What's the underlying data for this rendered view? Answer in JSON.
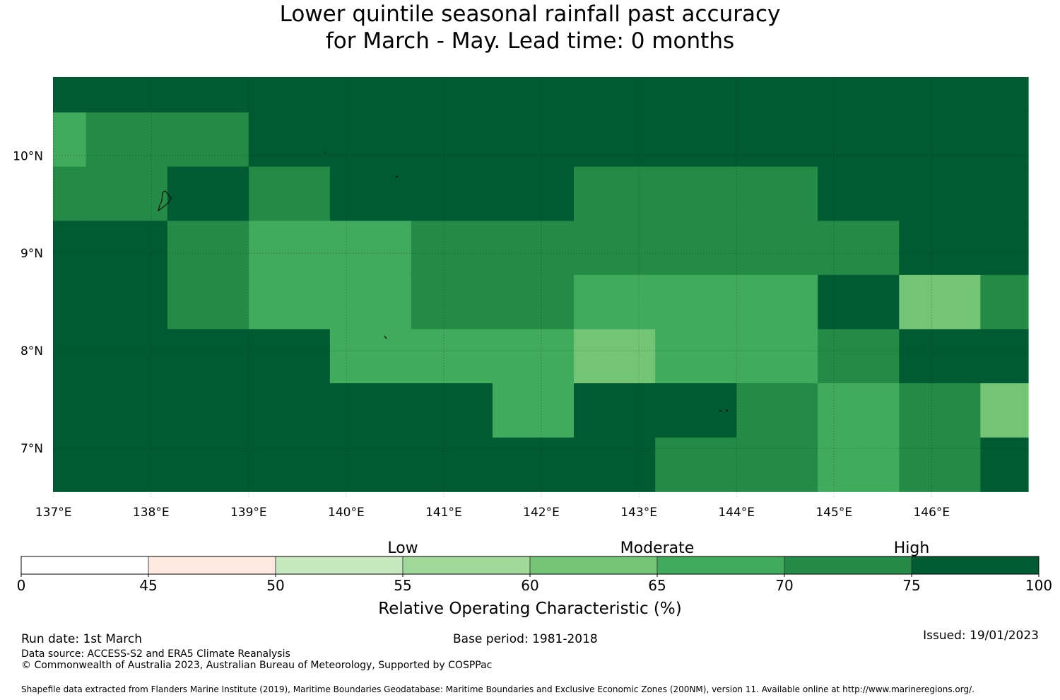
{
  "title": {
    "line1": "Lower quintile seasonal rainfall past accuracy",
    "line2": "for March - May. Lead time: 0 months"
  },
  "map": {
    "lon_ticks": [
      "137°E",
      "138°E",
      "139°E",
      "140°E",
      "141°E",
      "142°E",
      "143°E",
      "144°E",
      "145°E",
      "146°E"
    ],
    "lat_ticks": [
      "10°N",
      "9°N",
      "8°N",
      "7°N"
    ],
    "grid_lon": [
      136.5,
      137.333,
      138.167,
      139.0,
      139.833,
      140.667,
      141.5,
      142.333,
      143.167,
      144.0,
      144.833,
      145.667,
      146.5,
      147.333
    ],
    "grid_lat": [
      11.0,
      10.444,
      9.889,
      9.333,
      8.778,
      8.222,
      7.667,
      7.111,
      6.556
    ],
    "roc_values": [
      [
        80,
        80,
        80,
        80,
        80,
        80,
        80,
        80,
        80,
        80,
        80,
        80,
        80
      ],
      [
        67,
        72,
        72,
        80,
        80,
        80,
        80,
        80,
        80,
        80,
        80,
        80,
        80
      ],
      [
        72,
        72,
        80,
        72,
        80,
        80,
        80,
        72,
        72,
        72,
        80,
        80,
        80
      ],
      [
        80,
        80,
        72,
        67,
        67,
        72,
        72,
        72,
        72,
        72,
        72,
        80,
        80
      ],
      [
        80,
        80,
        72,
        67,
        67,
        72,
        72,
        67,
        67,
        67,
        80,
        62,
        72
      ],
      [
        80,
        80,
        80,
        80,
        67,
        67,
        67,
        62,
        67,
        67,
        72,
        80,
        80
      ],
      [
        80,
        80,
        80,
        80,
        80,
        80,
        67,
        80,
        80,
        72,
        67,
        72,
        62
      ],
      [
        80,
        80,
        80,
        80,
        80,
        80,
        80,
        80,
        72,
        72,
        67,
        72,
        80
      ]
    ]
  },
  "colorbar": {
    "categories": [
      "Low",
      "Moderate",
      "High"
    ],
    "tick_labels": [
      "0",
      "45",
      "50",
      "55",
      "60",
      "65",
      "70",
      "75",
      "100"
    ],
    "bins": [
      {
        "range": "0-45",
        "color": "#ffffff"
      },
      {
        "range": "45-50",
        "color": "#fee8df"
      },
      {
        "range": "50-55",
        "color": "#c7e9c0"
      },
      {
        "range": "55-60",
        "color": "#a1d99b"
      },
      {
        "range": "60-65",
        "color": "#74c476"
      },
      {
        "range": "65-70",
        "color": "#41ab5d"
      },
      {
        "range": "70-75",
        "color": "#238b45"
      },
      {
        "range": "75-100",
        "color": "#005a32"
      }
    ],
    "label": "Relative Operating Characteristic (%)"
  },
  "footer": {
    "run_date": "Run date: 1st March",
    "base_period": "Base period: 1981-2018",
    "issued": "Issued: 19/01/2023",
    "data_source": "Data source: ACCESS-S2 and ERA5 Climate Reanalysis",
    "copyright": "© Commonwealth of Australia 2023, Australian Bureau of Meteorology, Supported by COSPPac",
    "shapefile": "Shapefile data extracted from Flanders Marine Institute (2019), Maritime Boundaries Geodatabase: Maritime Boundaries and Exclusive Economic Zones (200NM), version 11. Available online at http://www.marineregions.org/."
  }
}
